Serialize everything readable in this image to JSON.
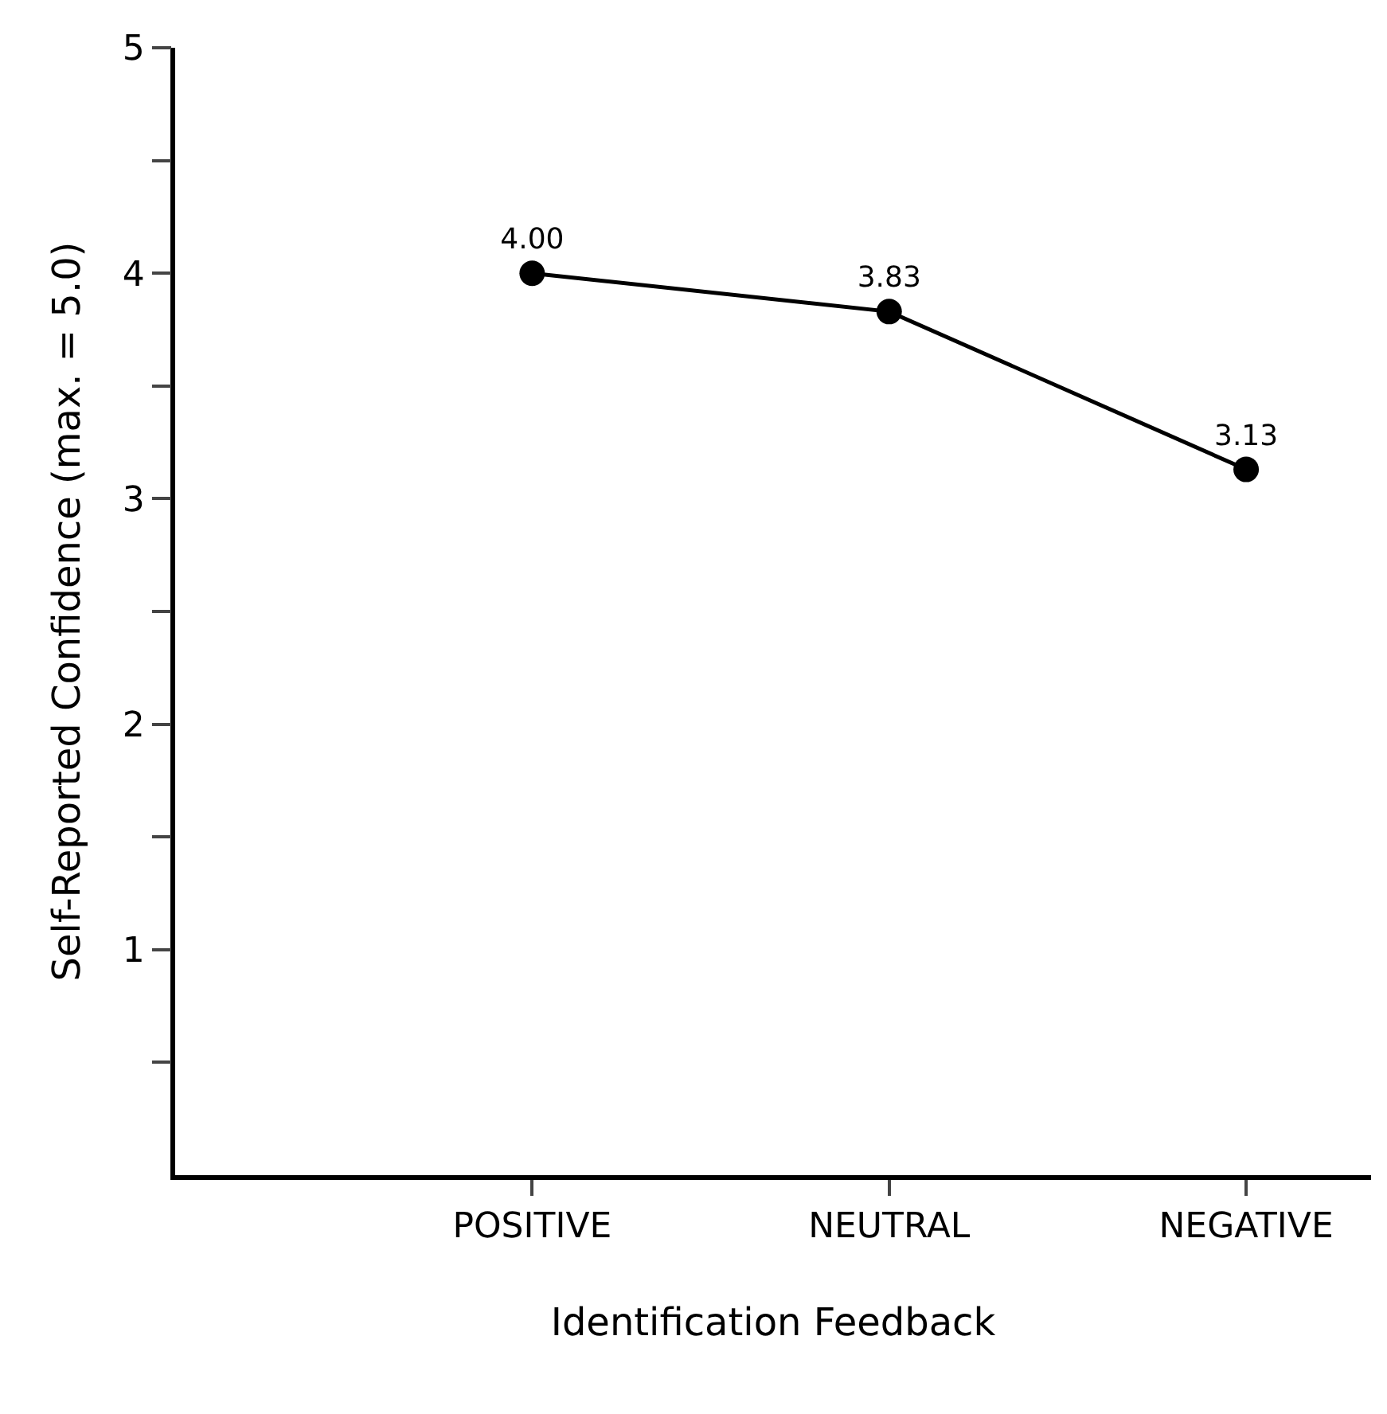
{
  "chart_data": {
    "type": "line",
    "xlabel": "Identification Feedback",
    "ylabel": "Self-Reported Confidence (max. = 5.0)",
    "categories": [
      "POSITIVE",
      "NEUTRAL",
      "NEGATIVE"
    ],
    "series": [
      {
        "color": "#000000",
        "values": [
          4.0,
          3.83,
          3.13
        ],
        "value_labels": [
          "4.00",
          "3.83",
          "3.13"
        ]
      }
    ],
    "ylim": [
      0,
      5
    ],
    "yticks": [
      {
        "value": 0.5,
        "label": null
      },
      1,
      {
        "value": 1.5,
        "label": null
      },
      2,
      {
        "value": 2.5,
        "label": null
      },
      3,
      {
        "value": 3.5,
        "label": null
      },
      4,
      {
        "value": 4.5,
        "label": null
      },
      5
    ],
    "marker": "circle",
    "line_style": "solid"
  }
}
